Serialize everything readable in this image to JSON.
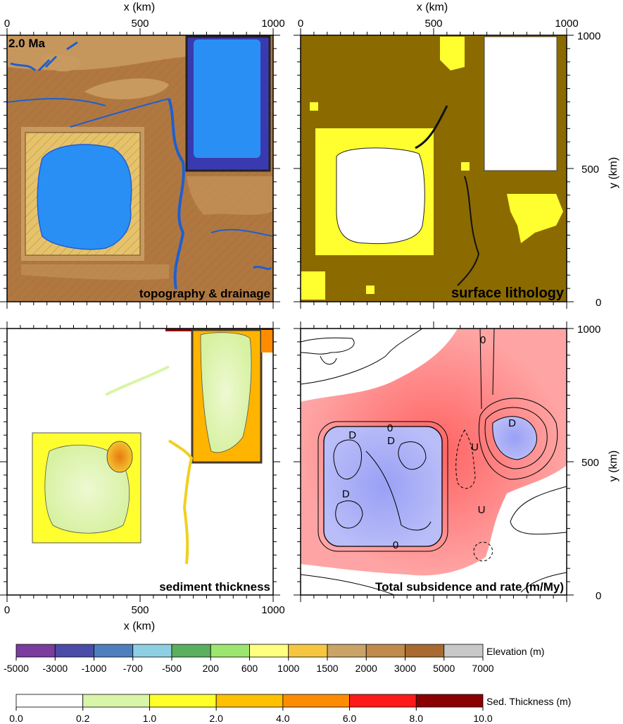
{
  "figure": {
    "time_label": "2.0 Ma",
    "x_title": "x (km)",
    "y_title": "y (km)"
  },
  "chart_data": [
    {
      "type": "heatmap",
      "title": "topography & drainage",
      "xlabel": "x (km)",
      "ylabel": "",
      "xlim": [
        0,
        1000
      ],
      "ylim": [
        0,
        1000
      ],
      "x_ticks": [
        "0",
        "500",
        "1000"
      ],
      "y_ticks": [],
      "colorscale": "Elevation (m)"
    },
    {
      "type": "heatmap",
      "title": "surface lithology",
      "xlabel": "x (km)",
      "ylabel": "y (km)",
      "xlim": [
        0,
        1000
      ],
      "ylim": [
        0,
        1000
      ],
      "x_ticks": [
        "0",
        "500",
        "1000"
      ],
      "y_ticks": [
        "0",
        "500",
        "1000"
      ]
    },
    {
      "type": "heatmap",
      "title": "sediment thickness",
      "xlabel": "x (km)",
      "ylabel": "",
      "xlim": [
        0,
        1000
      ],
      "ylim": [
        0,
        1000
      ],
      "x_ticks": [
        "0",
        "500",
        "1000"
      ],
      "y_ticks": [],
      "colorscale": "Sed. Thickness (m)"
    },
    {
      "type": "heatmap",
      "title": "Total subsidence  and rate (m/My)",
      "xlabel": "",
      "ylabel": "y (km)",
      "xlim": [
        0,
        1000
      ],
      "ylim": [
        0,
        1000
      ],
      "x_ticks": [],
      "y_ticks": [
        "0",
        "500",
        "1000"
      ],
      "contour_labels": [
        "0",
        "0",
        "0",
        "0"
      ],
      "markers": [
        {
          "label": "D",
          "x": 340,
          "y": 580
        },
        {
          "label": "D",
          "x": 195,
          "y": 600
        },
        {
          "label": "D",
          "x": 170,
          "y": 380
        },
        {
          "label": "D",
          "x": 795,
          "y": 645
        },
        {
          "label": "U",
          "x": 655,
          "y": 555
        },
        {
          "label": "U",
          "x": 680,
          "y": 320
        }
      ]
    }
  ],
  "colorbars": {
    "elevation": {
      "label": "Elevation (m)",
      "ticks": [
        "-5000",
        "-3000",
        "-1000",
        "-700",
        "-500",
        "200",
        "600",
        "1000",
        "1500",
        "2000",
        "3000",
        "5000",
        "7000"
      ],
      "colors": [
        "#7a3d9e",
        "#4a4ca8",
        "#4d7fbf",
        "#8ed0e3",
        "#5ab05e",
        "#9ce66f",
        "#ffff80",
        "#f7c640",
        "#c9a466",
        "#c08a4c",
        "#a86a30",
        "#c8c8c8"
      ]
    },
    "sediment": {
      "label": "Sed. Thickness (m)",
      "ticks": [
        "0.0",
        "0.2",
        "1.0",
        "2.0",
        "4.0",
        "6.0",
        "8.0",
        "10.0"
      ],
      "colors": [
        "#ffffff",
        "#d9f5a8",
        "#ffff2a",
        "#ffc000",
        "#ff8c00",
        "#ff1a1a",
        "#8b0000"
      ]
    }
  }
}
